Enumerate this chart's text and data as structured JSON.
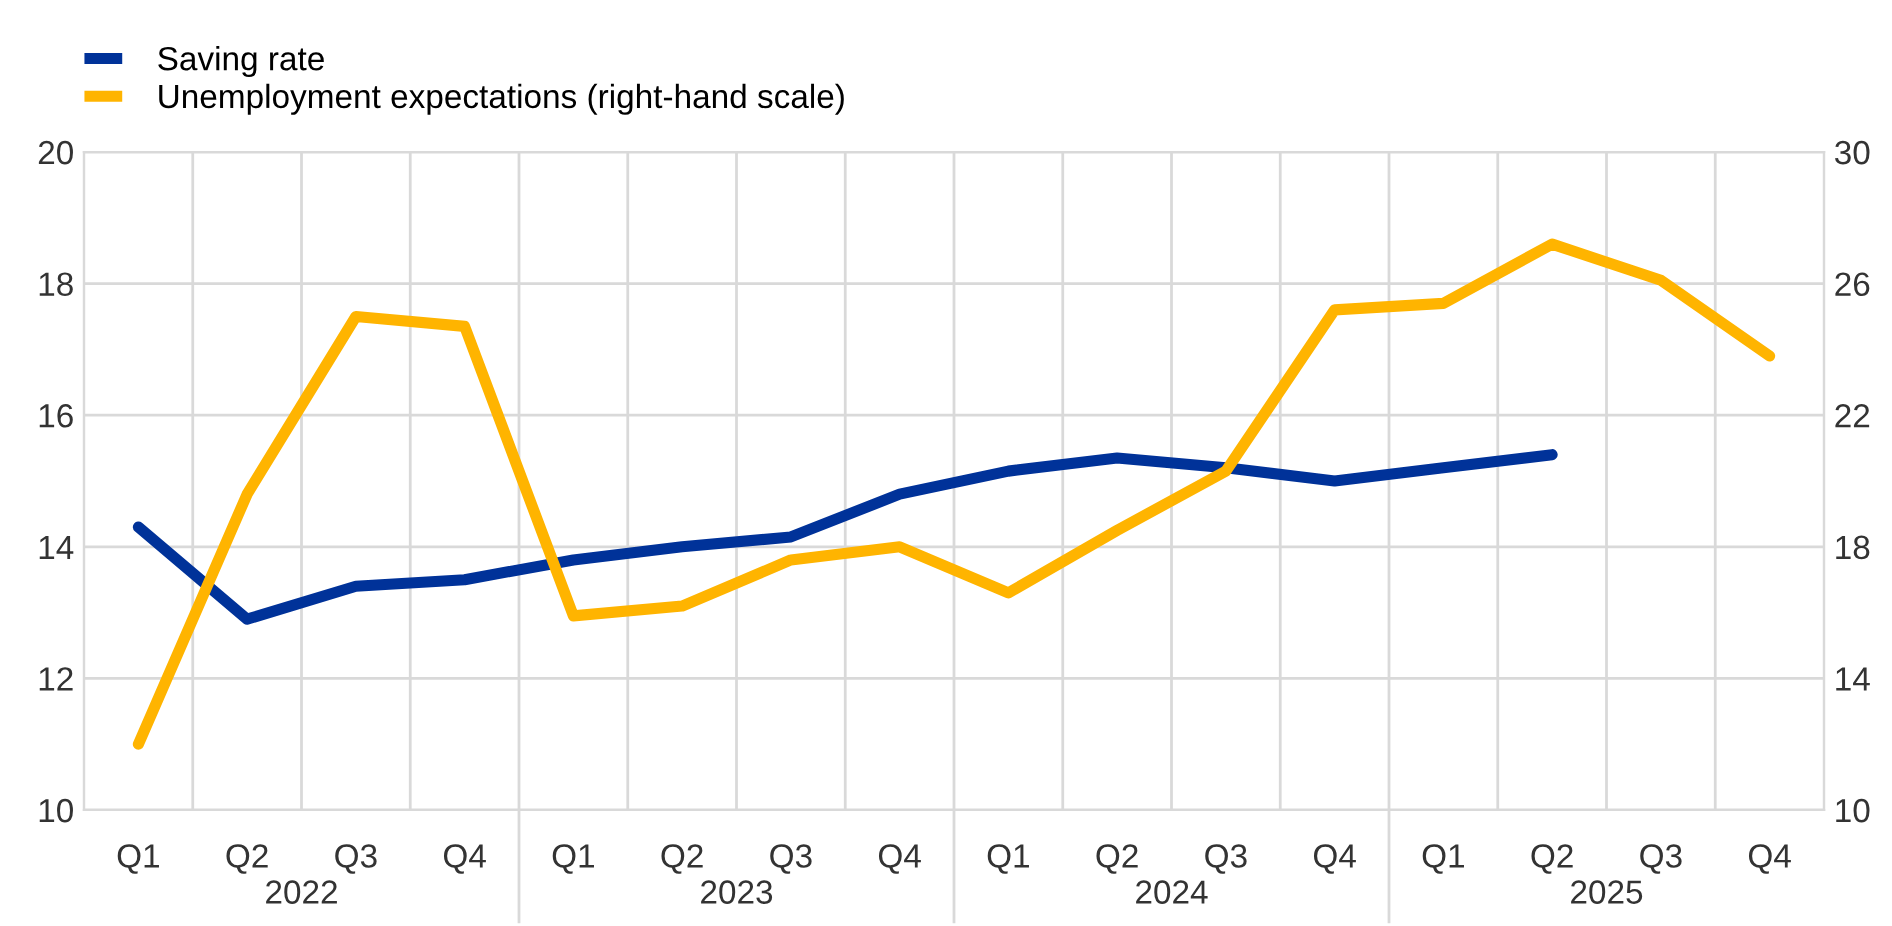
{
  "chart_data": {
    "type": "line",
    "categories": [
      "Q1",
      "Q2",
      "Q3",
      "Q4",
      "Q1",
      "Q2",
      "Q3",
      "Q4",
      "Q1",
      "Q2",
      "Q3",
      "Q4",
      "Q1",
      "Q2",
      "Q3",
      "Q4"
    ],
    "series": [
      {
        "name": "Saving rate",
        "color": "#003299",
        "values": [
          14.3,
          12.9,
          13.4,
          13.5,
          13.8,
          14.0,
          14.15,
          14.8,
          15.15,
          15.35,
          15.2,
          15.0,
          15.2,
          15.4,
          null,
          null
        ]
      },
      {
        "name": "Unemployment expectations (right-hand scale)",
        "color": "#ffb400",
        "axis": "y2",
        "values": [
          12.0,
          19.6,
          25.0,
          24.7,
          15.9,
          16.2,
          17.6,
          18.0,
          16.6,
          18.5,
          20.3,
          25.2,
          25.4,
          27.2,
          26.1,
          23.8
        ]
      }
    ],
    "annotations": [
      "2022",
      "2023",
      "2024",
      "2025"
    ],
    "ylim": [
      10,
      20
    ],
    "yticks": [
      10,
      12,
      14,
      16,
      18,
      20
    ],
    "y2lim": [
      10,
      30
    ],
    "y2ticks": [
      10,
      14,
      18,
      22,
      26,
      30
    ],
    "grid": true,
    "legend": "top left",
    "line_style": "solid",
    "marker": "none"
  }
}
